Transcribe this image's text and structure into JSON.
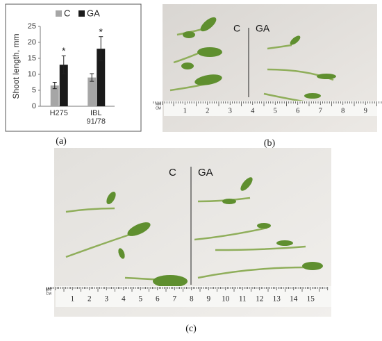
{
  "chart_data": {
    "type": "bar",
    "ylabel": "Shoot length, mm",
    "categories": [
      "H275",
      "IBL 91/78"
    ],
    "series": [
      {
        "name": "C",
        "color": "#a6a6a6",
        "values": [
          6.5,
          9
        ],
        "errors": [
          1,
          1.2
        ]
      },
      {
        "name": "GA",
        "color": "#1a1a1a",
        "values": [
          13,
          18
        ],
        "errors": [
          2.8,
          3.8
        ],
        "markers": [
          "*",
          "*"
        ]
      }
    ],
    "ylim": [
      0,
      25
    ],
    "yticks": [
      0,
      5,
      10,
      15,
      20,
      25
    ]
  },
  "figure": {
    "panel_labels": [
      "(a)",
      "(b)",
      "(c)"
    ],
    "photo_b": {
      "labels": [
        "C",
        "GA"
      ],
      "ruler_units": [
        "MM",
        "CM"
      ],
      "ruler": [
        "1",
        "2",
        "3",
        "4",
        "5",
        "6",
        "7",
        "8",
        "9"
      ]
    },
    "photo_c": {
      "labels": [
        "C",
        "GA"
      ],
      "ruler_units": [
        "MM",
        "CM"
      ],
      "ruler": [
        "1",
        "2",
        "3",
        "4",
        "5",
        "6",
        "7",
        "8",
        "9",
        "10",
        "11",
        "12",
        "13",
        "14",
        "15"
      ]
    }
  }
}
